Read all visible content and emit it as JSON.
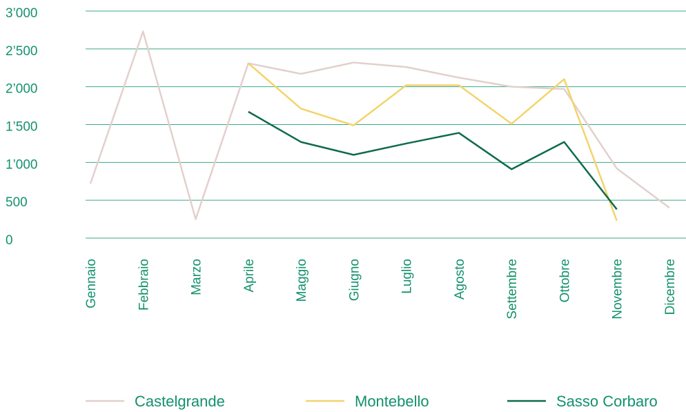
{
  "chart_data": {
    "type": "line",
    "categories": [
      "Gennaio",
      "Febbraio",
      "Marzo",
      "Aprile",
      "Maggio",
      "Giugno",
      "Luglio",
      "Agosto",
      "Settembre",
      "Ottobre",
      "Novembre",
      "Dicembre"
    ],
    "series": [
      {
        "name": "Castelgrande",
        "color": "#e2d0cd",
        "values": [
          720,
          2730,
          250,
          2310,
          2170,
          2320,
          2260,
          2120,
          2000,
          1970,
          920,
          400
        ]
      },
      {
        "name": "Montebello",
        "color": "#f3d46a",
        "values": [
          null,
          null,
          null,
          2310,
          1710,
          1490,
          2020,
          2020,
          1510,
          2100,
          230,
          null
        ]
      },
      {
        "name": "Sasso Corbaro",
        "color": "#0e6b4a",
        "values": [
          null,
          null,
          null,
          1670,
          1270,
          1100,
          1250,
          1390,
          910,
          1270,
          380,
          null
        ]
      }
    ],
    "ylim": [
      0,
      3000
    ],
    "yticks": [
      0,
      500,
      {
        "value": 1000,
        "label": "1’000"
      },
      {
        "value": 1500,
        "label": "1’500"
      },
      {
        "value": 2000,
        "label": "2’000"
      },
      {
        "value": 2500,
        "label": "2’500"
      },
      {
        "value": 3000,
        "label": "3’000"
      }
    ],
    "grid": true,
    "legend": "bottom"
  }
}
